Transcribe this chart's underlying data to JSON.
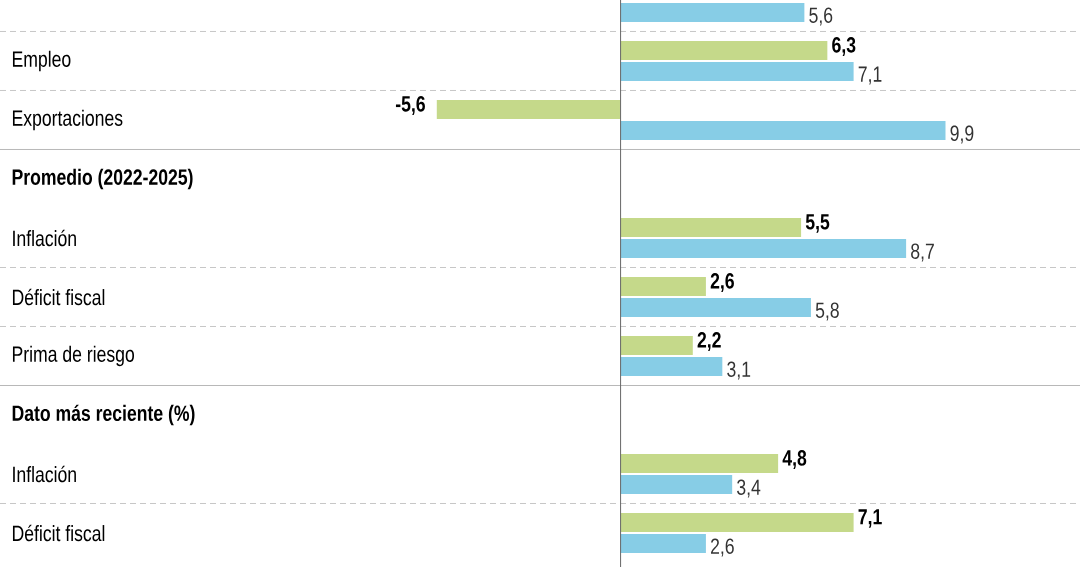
{
  "chart_data": {
    "type": "bar",
    "orientation": "horizontal",
    "categories": [
      null,
      "Empleo",
      "Exportaciones",
      "Promedio (2022-2025)",
      "Inflación",
      "Déficit fiscal",
      "Prima de riesgo",
      "Dato más reciente (%)",
      "Inflación",
      "Déficit fiscal"
    ],
    "series": [
      {
        "color": "#c5d98a",
        "values": [
          null,
          6.3,
          -5.6,
          null,
          5.5,
          2.6,
          2.2,
          null,
          4.8,
          7.1
        ],
        "value_labels": [
          null,
          "6,3",
          "-5,6",
          null,
          "5,5",
          "2,6",
          "2,2",
          null,
          "4,8",
          "7,1"
        ]
      },
      {
        "color": "#87cde6",
        "values": [
          5.6,
          7.1,
          9.9,
          null,
          8.7,
          5.8,
          3.1,
          null,
          3.4,
          2.6
        ],
        "value_labels": [
          "5,6",
          "7,1",
          "9,9",
          null,
          "8,7",
          "5,8",
          "3,1",
          null,
          "3,4",
          "2,6"
        ]
      }
    ]
  }
}
